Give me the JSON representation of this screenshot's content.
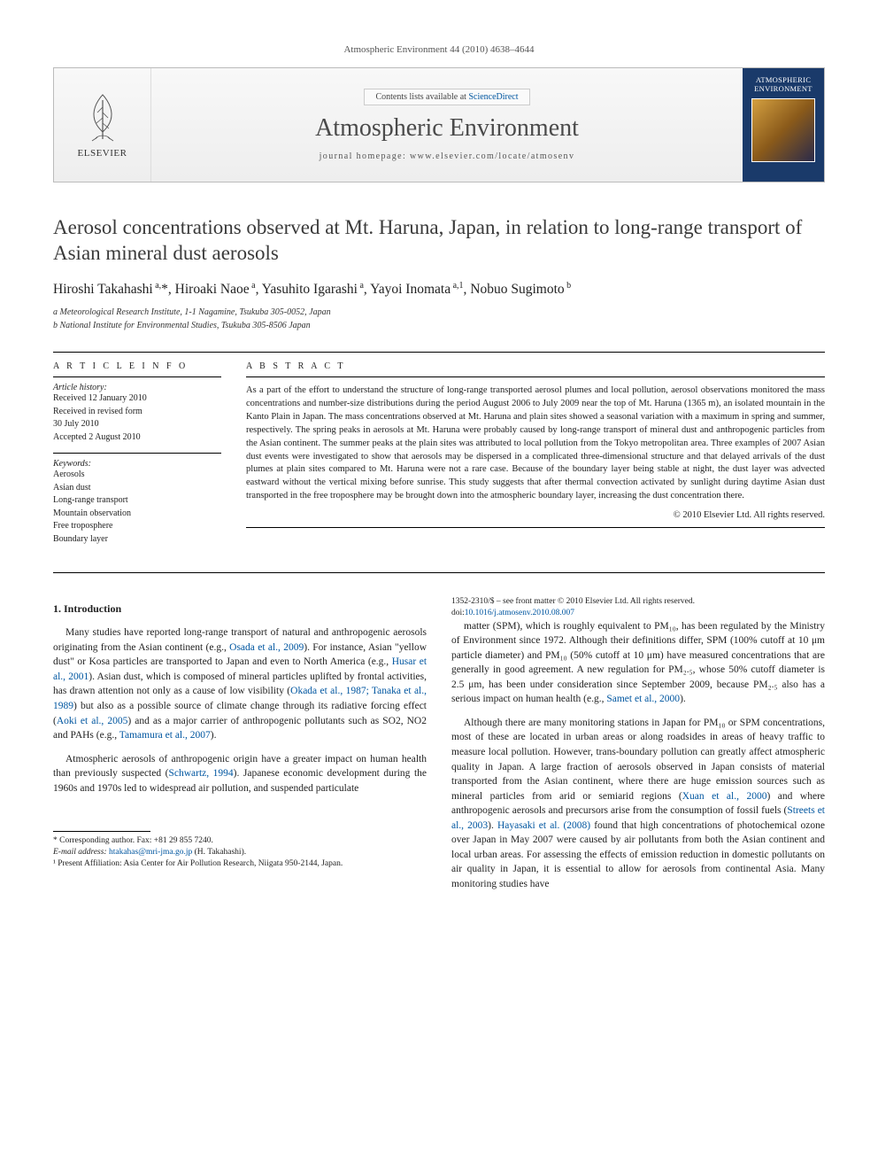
{
  "header": {
    "citation": "Atmospheric Environment 44 (2010) 4638–4644"
  },
  "masthead": {
    "publisher_logo_label": "ELSEVIER",
    "contents_prefix": "Contents lists available at ",
    "contents_link": "ScienceDirect",
    "journal_name": "Atmospheric Environment",
    "homepage": "journal homepage: www.elsevier.com/locate/atmosenv",
    "cover_label": "ATMOSPHERIC ENVIRONMENT"
  },
  "article": {
    "title": "Aerosol concentrations observed at Mt. Haruna, Japan, in relation to long-range transport of Asian mineral dust aerosols",
    "authors_html": "Hiroshi Takahashi<sup> a,</sup>*, Hiroaki Naoe<sup> a</sup>, Yasuhito Igarashi<sup> a</sup>, Yayoi Inomata<sup> a,1</sup>, Nobuo Sugimoto<sup> b</sup>",
    "affiliations": {
      "a": "a Meteorological Research Institute, 1-1 Nagamine, Tsukuba 305-0052, Japan",
      "b": "b National Institute for Environmental Studies, Tsukuba 305-8506 Japan"
    }
  },
  "info": {
    "head": "A R T I C L E  I N F O",
    "history_label": "Article history:",
    "history": "Received 12 January 2010\nReceived in revised form\n30 July 2010\nAccepted 2 August 2010",
    "keywords_label": "Keywords:",
    "keywords": "Aerosols\nAsian dust\nLong-range transport\nMountain observation\nFree troposphere\nBoundary layer"
  },
  "abstract": {
    "head": "A B S T R A C T",
    "text": "As a part of the effort to understand the structure of long-range transported aerosol plumes and local pollution, aerosol observations monitored the mass concentrations and number-size distributions during the period August 2006 to July 2009 near the top of Mt. Haruna (1365 m), an isolated mountain in the Kanto Plain in Japan. The mass concentrations observed at Mt. Haruna and plain sites showed a seasonal variation with a maximum in spring and summer, respectively. The spring peaks in aerosols at Mt. Haruna were probably caused by long-range transport of mineral dust and anthropogenic particles from the Asian continent. The summer peaks at the plain sites was attributed to local pollution from the Tokyo metropolitan area. Three examples of 2007 Asian dust events were investigated to show that aerosols may be dispersed in a complicated three-dimensional structure and that delayed arrivals of the dust plumes at plain sites compared to Mt. Haruna were not a rare case. Because of the boundary layer being stable at night, the dust layer was advected eastward without the vertical mixing before sunrise. This study suggests that after thermal convection activated by sunlight during daytime Asian dust transported in the free troposphere may be brought down into the atmospheric boundary layer, increasing the dust concentration there.",
    "copyright": "© 2010 Elsevier Ltd. All rights reserved."
  },
  "body": {
    "section1_head": "1. Introduction",
    "p1": "Many studies have reported long-range transport of natural and anthropogenic aerosols originating from the Asian continent (e.g., Osada et al., 2009). For instance, Asian \"yellow dust\" or Kosa particles are transported to Japan and even to North America (e.g., Husar et al., 2001). Asian dust, which is composed of mineral particles uplifted by frontal activities, has drawn attention not only as a cause of low visibility (Okada et al., 1987; Tanaka et al., 1989) but also as a possible source of climate change through its radiative forcing effect (Aoki et al., 2005) and as a major carrier of anthropogenic pollutants such as SO2, NO2 and PAHs (e.g., Tamamura et al., 2007).",
    "p2": "Atmospheric aerosols of anthropogenic origin have a greater impact on human health than previously suspected (Schwartz, 1994). Japanese economic development during the 1960s and 1970s led to widespread air pollution, and suspended particulate",
    "p3": "matter (SPM), which is roughly equivalent to PM₁₀, has been regulated by the Ministry of Environment since 1972. Although their definitions differ, SPM (100% cutoff at 10 μm particle diameter) and PM₁₀ (50% cutoff at 10 μm) have measured concentrations that are generally in good agreement. A new regulation for PM₂.₅, whose 50% cutoff diameter is 2.5 μm, has been under consideration since September 2009, because PM₂.₅ also has a serious impact on human health (e.g., Samet et al., 2000).",
    "p4": "Although there are many monitoring stations in Japan for PM₁₀ or SPM concentrations, most of these are located in urban areas or along roadsides in areas of heavy traffic to measure local pollution. However, trans-boundary pollution can greatly affect atmospheric quality in Japan. A large fraction of aerosols observed in Japan consists of material transported from the Asian continent, where there are huge emission sources such as mineral particles from arid or semiarid regions (Xuan et al., 2000) and where anthropogenic aerosols and precursors arise from the consumption of fossil fuels (Streets et al., 2003). Hayasaki et al. (2008) found that high concentrations of photochemical ozone over Japan in May 2007 were caused by air pollutants from both the Asian continent and local urban areas. For assessing the effects of emission reduction in domestic pollutants on air quality in Japan, it is essential to allow for aerosols from continental Asia. Many monitoring studies have"
  },
  "footnotes": {
    "corr": "* Corresponding author. Fax: +81 29 855 7240.",
    "email_label": "E-mail address: ",
    "email": "htakahas@mri-jma.go.jp",
    "email_suffix": " (H. Takahashi).",
    "note1": "¹ Present Affiliation: Asia Center for Air Pollution Research, Niigata 950-2144, Japan."
  },
  "bottom": {
    "line1": "1352-2310/$ – see front matter © 2010 Elsevier Ltd. All rights reserved.",
    "doi_prefix": "doi:",
    "doi": "10.1016/j.atmosenv.2010.08.007"
  },
  "colors": {
    "link": "#0056a0",
    "text": "#222222",
    "mast_bg_top": "#f8f8f8",
    "mast_bg_bot": "#eeeeee",
    "cover_bg": "#1a3a6a"
  }
}
